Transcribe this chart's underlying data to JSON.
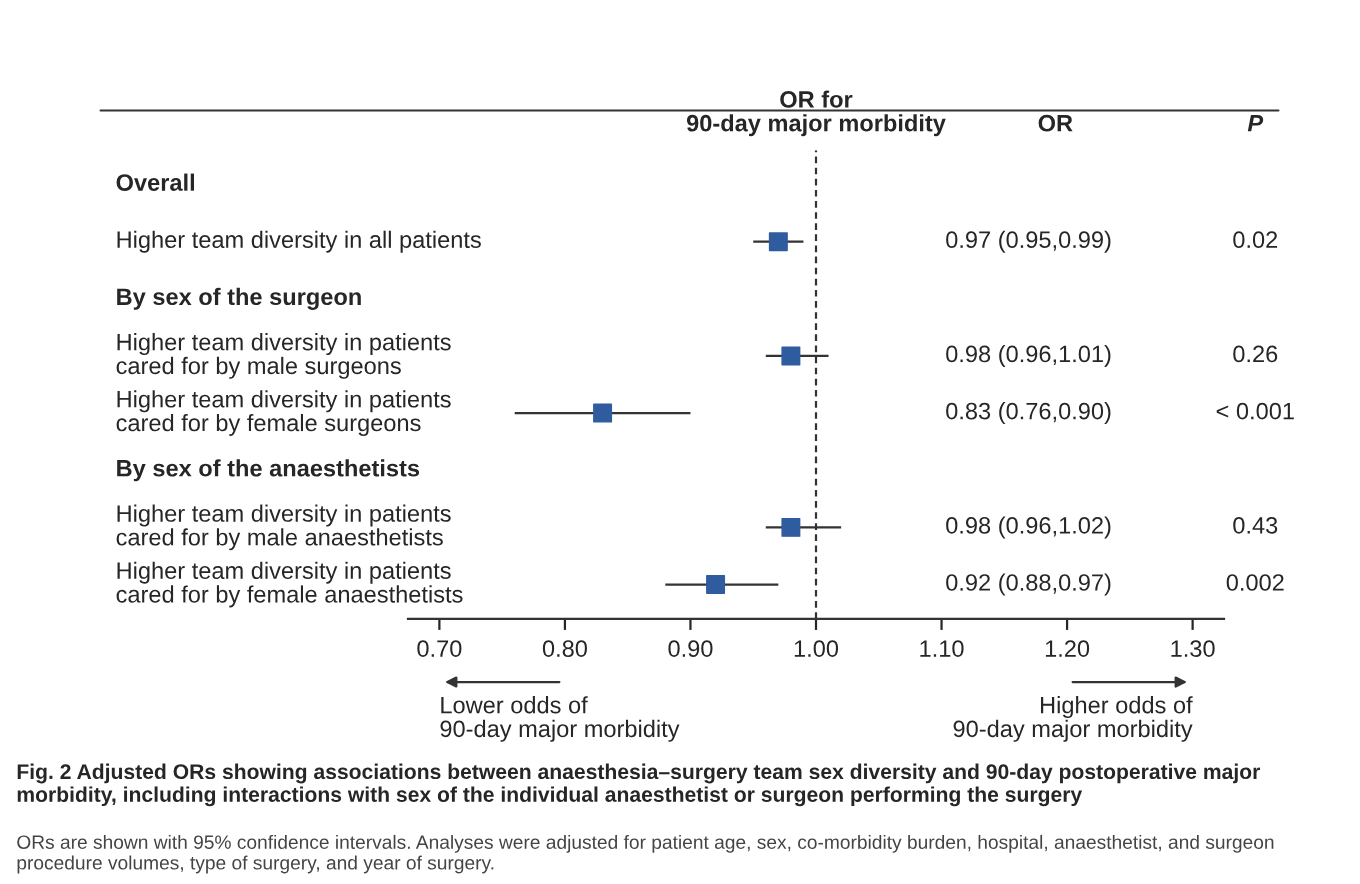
{
  "chart_data": {
    "type": "scatter",
    "orientation": "horizontal",
    "title": "Fig. 2 Adjusted ORs showing associations between anaesthesia–surgery team sex diversity and 90-day postoperative major morbidity, including interactions with sex of the individual anaesthetist or surgeon performing the surgery",
    "xlabel": "OR for\n90-day major morbidity",
    "categories": [
      "Overall",
      "Higher team diversity in all patients",
      "By sex of the surgeon",
      "Higher team diversity in patients\ncared for by male surgeons",
      "Higher team diversity in patients\ncared for by female surgeons",
      "By sex of the anaesthetists",
      "Higher team diversity in patients\ncared for by male anaesthetists",
      "Higher team diversity in patients\ncared for by female anaesthetists"
    ],
    "values": [
      null,
      0.97,
      null,
      0.98,
      0.83,
      null,
      0.98,
      0.92
    ],
    "errors": [
      null,
      [
        0.95,
        0.99
      ],
      null,
      [
        0.96,
        1.01
      ],
      [
        0.76,
        0.9
      ],
      null,
      [
        0.96,
        1.02
      ],
      [
        0.88,
        0.97
      ]
    ],
    "color": "#2f5c9e",
    "marker": "square",
    "xlim": [
      0.675,
      1.325
    ],
    "xticks": [
      {
        "value": 0.7,
        "label": "0.70"
      },
      {
        "value": 0.8,
        "label": "0.80"
      },
      {
        "value": 0.9,
        "label": "0.90"
      },
      {
        "value": 1.0,
        "label": "1.00"
      },
      {
        "value": 1.1,
        "label": "1.10"
      },
      {
        "value": 1.2,
        "label": "1.20"
      },
      {
        "value": 1.3,
        "label": "1.30"
      }
    ],
    "ref_lines": [
      {
        "axis": "x",
        "value": 1.0,
        "line_style": "dashed",
        "color": "#333333"
      }
    ],
    "annotations": [
      "OR",
      "P",
      null,
      "0.97 (0.95,0.99)",
      null,
      "0.98 (0.96,1.01)",
      "0.83 (0.76,0.90)",
      null,
      "0.98 (0.96,1.02)",
      "0.92 (0.88,0.97)",
      null,
      "0.02",
      null,
      "0.26",
      "< 0.001",
      null,
      "0.43",
      "0.002",
      "Lower odds of\n90-day major morbidity",
      "Higher odds of\n90-day major morbidity",
      "ORs are shown with 95% confidence intervals. Analyses were adjusted for patient age, sex, co-morbidity burden, hospital, anaesthetist, and surgeon procedure volumes, type of surgery, and year of surgery."
    ],
    "grid": false
  }
}
